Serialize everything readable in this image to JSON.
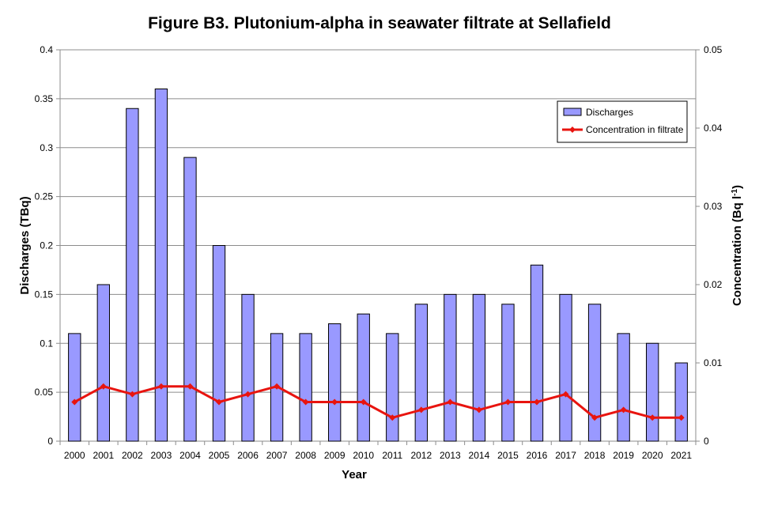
{
  "chart_data": {
    "type": "bar",
    "title": "Figure B3. Plutonium-alpha in seawater filtrate at Sellafield",
    "xlabel": "Year",
    "ylabel": "Discharges (TBq)",
    "y2label": "Concentration (Bq l",
    "y2label_sup": "-1",
    "y2label_close": ")",
    "ylim": [
      0,
      0.4
    ],
    "y2lim": [
      0,
      0.05
    ],
    "yticks": [
      "0",
      "0.05",
      "0.1",
      "0.15",
      "0.2",
      "0.25",
      "0.3",
      "0.35",
      "0.4"
    ],
    "y2ticks": [
      "0",
      "0.01",
      "0.02",
      "0.03",
      "0.04",
      "0.05"
    ],
    "grid": true,
    "legend_position": "top-right",
    "categories": [
      "2000",
      "2001",
      "2002",
      "2003",
      "2004",
      "2005",
      "2006",
      "2007",
      "2008",
      "2009",
      "2010",
      "2011",
      "2012",
      "2013",
      "2014",
      "2015",
      "2016",
      "2017",
      "2018",
      "2019",
      "2020",
      "2021"
    ],
    "series": [
      {
        "name": "Discharges",
        "type": "bar",
        "axis": "left",
        "color": "#9999FF",
        "values": [
          0.11,
          0.16,
          0.34,
          0.36,
          0.29,
          0.2,
          0.15,
          0.11,
          0.11,
          0.12,
          0.13,
          0.11,
          0.14,
          0.15,
          0.15,
          0.14,
          0.18,
          0.15,
          0.14,
          0.11,
          0.1,
          0.08
        ]
      },
      {
        "name": "Concentration in filtrate",
        "type": "line",
        "axis": "right",
        "color": "#E8140F",
        "values": [
          0.005,
          0.007,
          0.006,
          0.007,
          0.007,
          0.005,
          0.006,
          0.007,
          0.005,
          0.005,
          0.005,
          0.003,
          0.004,
          0.005,
          0.004,
          0.005,
          0.005,
          0.006,
          0.003,
          0.004,
          0.003,
          0.003
        ]
      }
    ]
  }
}
